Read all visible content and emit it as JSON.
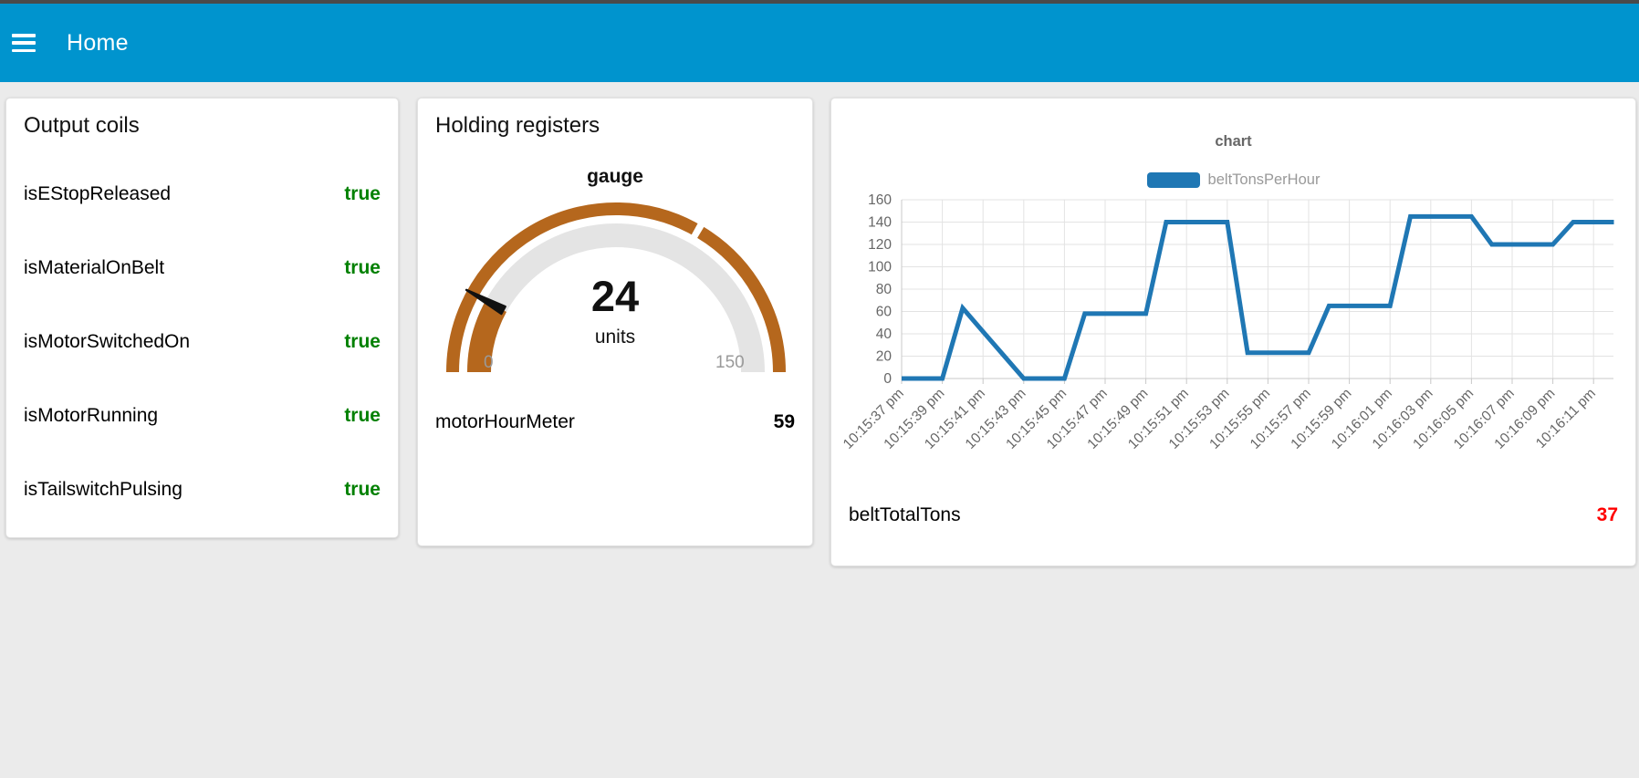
{
  "header": {
    "title": "Home"
  },
  "theme": {
    "header_bg": "#0094CE",
    "page_bg": "#ebebeb",
    "true_green": "#008000",
    "value_red": "#ff0000",
    "gauge_color": "#b5671d",
    "gauge_track": "#e4e4e4",
    "needle_color": "#111111",
    "line_blue": "#1f77b4"
  },
  "output_coils": {
    "title": "Output coils",
    "rows": [
      {
        "label": "isEStopReleased",
        "value": "true"
      },
      {
        "label": "isMaterialOnBelt",
        "value": "true"
      },
      {
        "label": "isMotorSwitchedOn",
        "value": "true"
      },
      {
        "label": "isMotorRunning",
        "value": "true"
      },
      {
        "label": "isTailswitchPulsing",
        "value": "true"
      }
    ]
  },
  "holding_registers": {
    "title": "Holding registers",
    "gauge": {
      "label": "gauge",
      "value": 24,
      "units": "units",
      "min": 0,
      "max": 150,
      "seg_boundary": 100
    },
    "meter_row": {
      "label": "motorHourMeter",
      "value": "59"
    }
  },
  "chart_card": {
    "total_row": {
      "label": "beltTotalTons",
      "value": "37"
    }
  },
  "chart_data": {
    "type": "line",
    "title": "chart",
    "legend_position": "top",
    "grid": true,
    "ylim": [
      0,
      160
    ],
    "y_ticks": [
      160,
      140,
      120,
      100,
      80,
      60,
      40,
      20,
      0
    ],
    "x_tick_labels": [
      "10:15:37 pm",
      "10:15:39 pm",
      "10:15:41 pm",
      "10:15:43 pm",
      "10:15:45 pm",
      "10:15:47 pm",
      "10:15:49 pm",
      "10:15:51 pm",
      "10:15:53 pm",
      "10:15:55 pm",
      "10:15:57 pm",
      "10:15:59 pm",
      "10:16:01 pm",
      "10:16:03 pm",
      "10:16:05 pm",
      "10:16:07 pm",
      "10:16:09 pm",
      "10:16:11 pm"
    ],
    "seconds_per_point": 1,
    "x_ticks_every_seconds": 2,
    "series": [
      {
        "name": "beltTonsPerHour",
        "color": "#1f77b4",
        "values": [
          0,
          0,
          0,
          63,
          42,
          21,
          0,
          0,
          0,
          58,
          58,
          58,
          58,
          140,
          140,
          140,
          140,
          23,
          23,
          23,
          23,
          65,
          65,
          65,
          65,
          145,
          145,
          145,
          145,
          120,
          120,
          120,
          120,
          140,
          140,
          140
        ]
      }
    ]
  }
}
